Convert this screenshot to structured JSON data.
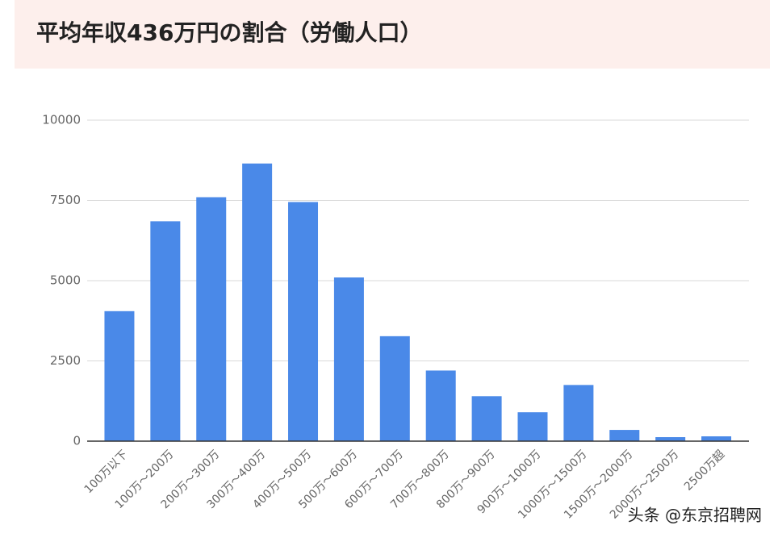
{
  "chart_data": {
    "type": "bar",
    "title": "平均年収436万円の割合（労働人口）",
    "categories": [
      "100万以下",
      "100万～200万",
      "200万～300万",
      "300万～400万",
      "400万～500万",
      "500万～600万",
      "600万～700万",
      "700万～800万",
      "800万～900万",
      "900万～1000万",
      "1000万～1500万",
      "1500万～2000万",
      "2000万～2500万",
      "2500万超"
    ],
    "values": [
      4050,
      6850,
      7600,
      8650,
      7450,
      5100,
      3270,
      2200,
      1400,
      900,
      1750,
      350,
      125,
      150
    ],
    "color": "#4a89e8",
    "ylim": [
      0,
      10000
    ],
    "yticks": [
      0,
      2500,
      5000,
      7500,
      10000
    ],
    "grid": true,
    "watermark": "头条 @东京招聘网"
  }
}
